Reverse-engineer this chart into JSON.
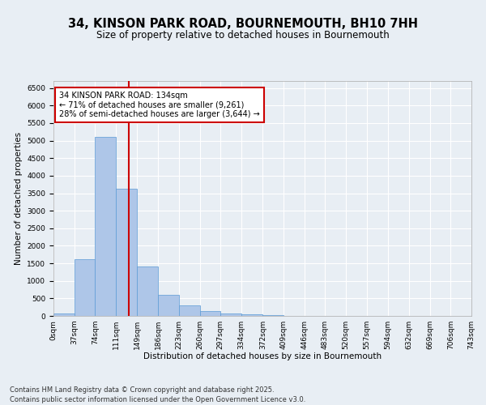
{
  "title": "34, KINSON PARK ROAD, BOURNEMOUTH, BH10 7HH",
  "subtitle": "Size of property relative to detached houses in Bournemouth",
  "xlabel": "Distribution of detached houses by size in Bournemouth",
  "ylabel": "Number of detached properties",
  "bin_edges": [
    0,
    37,
    74,
    111,
    149,
    186,
    223,
    260,
    297,
    334,
    372,
    409,
    446,
    483,
    520,
    557,
    594,
    632,
    669,
    706,
    743
  ],
  "bar_heights": [
    80,
    1620,
    5100,
    3620,
    1420,
    600,
    310,
    130,
    80,
    50,
    30,
    0,
    0,
    0,
    0,
    0,
    0,
    0,
    0,
    0
  ],
  "bar_color": "#aec6e8",
  "bar_edgecolor": "#5b9bd5",
  "property_size": 134,
  "vline_color": "#cc0000",
  "annotation_text": "34 KINSON PARK ROAD: 134sqm\n← 71% of detached houses are smaller (9,261)\n28% of semi-detached houses are larger (3,644) →",
  "annotation_box_edgecolor": "#cc0000",
  "annotation_box_facecolor": "#ffffff",
  "ylim": [
    0,
    6700
  ],
  "yticks": [
    0,
    500,
    1000,
    1500,
    2000,
    2500,
    3000,
    3500,
    4000,
    4500,
    5000,
    5500,
    6000,
    6500
  ],
  "bg_color": "#e8eef4",
  "grid_color": "#ffffff",
  "footer": "Contains HM Land Registry data © Crown copyright and database right 2025.\nContains public sector information licensed under the Open Government Licence v3.0.",
  "title_fontsize": 10.5,
  "subtitle_fontsize": 8.5,
  "axis_label_fontsize": 7.5,
  "tick_fontsize": 6.5,
  "footer_fontsize": 6.0
}
